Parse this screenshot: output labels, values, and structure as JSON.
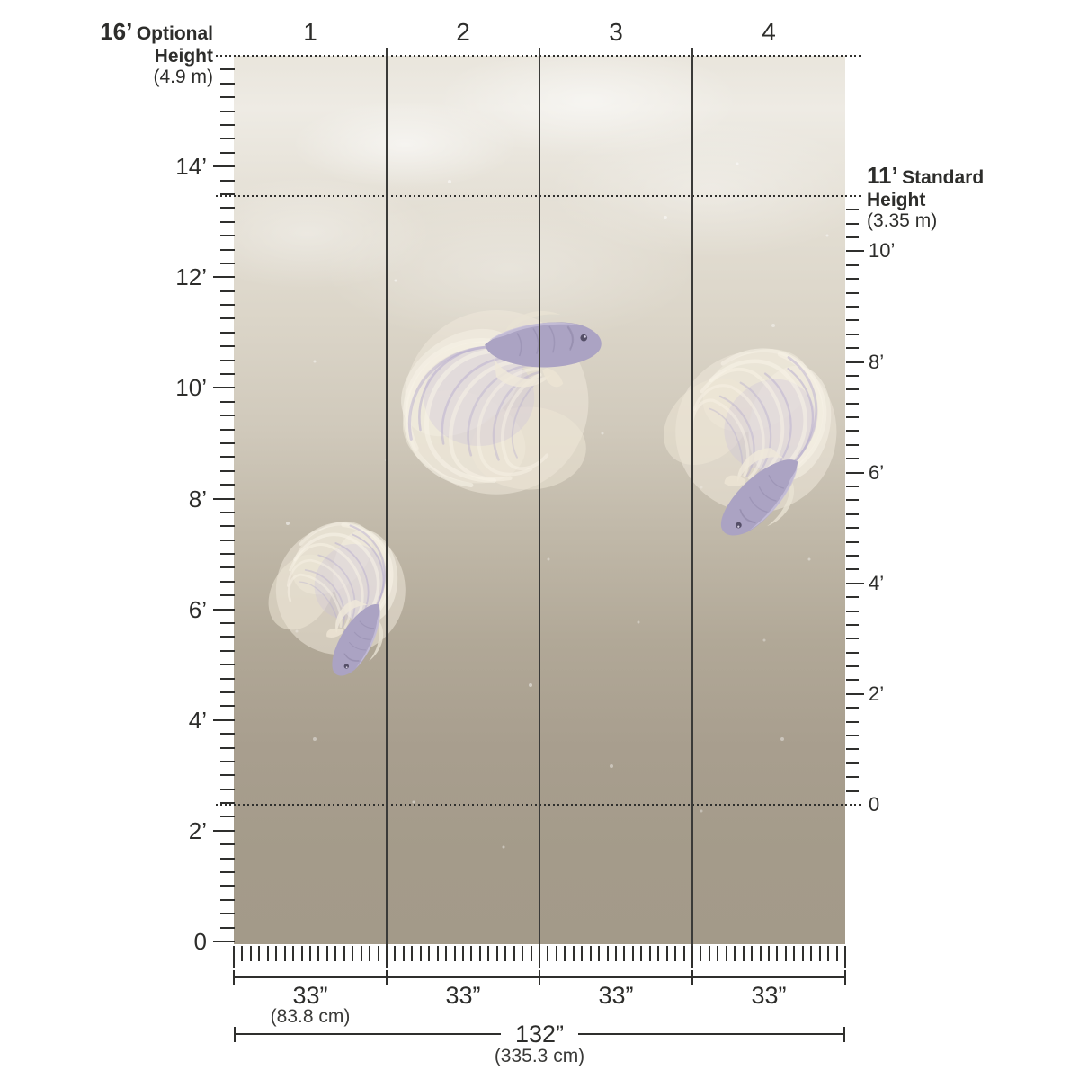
{
  "optional_height": {
    "value": "16’",
    "word1": "Optional",
    "word2": "Height",
    "metric": "(4.9 m)"
  },
  "standard_height": {
    "value": "11’",
    "word1": "Standard",
    "word2": "Height",
    "metric": "(3.35 m)"
  },
  "panels": {
    "numbers": [
      "1",
      "2",
      "3",
      "4"
    ],
    "widths": [
      "33”",
      "33”",
      "33”",
      "33”"
    ],
    "width_metric": "(83.8 cm)",
    "total_width": "132”",
    "total_metric": "(335.3 cm)"
  },
  "left_ruler": {
    "labels": [
      "0",
      "2’",
      "4’",
      "6’",
      "8’",
      "10’",
      "12’",
      "14’"
    ]
  },
  "right_ruler": {
    "labels": [
      "0",
      "2’",
      "4’",
      "6’",
      "8’",
      "10’"
    ]
  },
  "mural": {
    "subject": "three lavender betta fish with flowing cream fins on a taupe watercolor gradient",
    "fish": [
      "betta-fish-top-center",
      "betta-fish-right",
      "betta-fish-left"
    ]
  },
  "colors": {
    "ink": "#2d2d2b",
    "panel_line": "#3a3a38",
    "mural_top": "#ece9e1",
    "mural_bottom": "#a39a89",
    "fish_body": "#aba3c3",
    "fish_fin": "#f0e9da"
  }
}
